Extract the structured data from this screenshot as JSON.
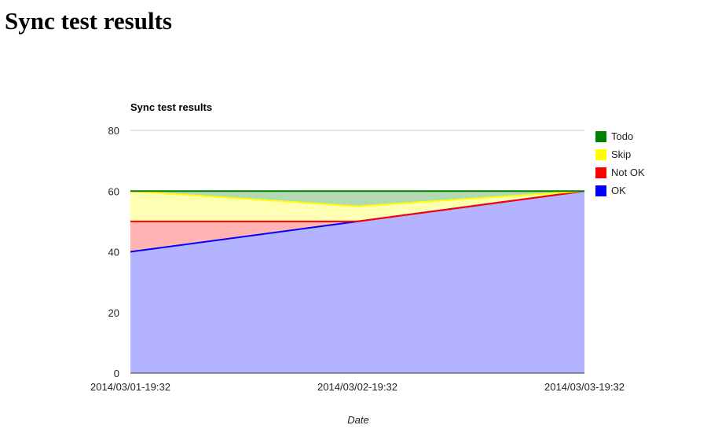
{
  "page": {
    "title": "Sync test results"
  },
  "chart_data": {
    "type": "area",
    "stacked": true,
    "title": "Sync test results",
    "xlabel": "Date",
    "ylabel": "",
    "x": [
      "2014/03/01-19:32",
      "2014/03/02-19:32",
      "2014/03/03-19:32"
    ],
    "ylim": [
      0,
      80
    ],
    "yticks": [
      0,
      20,
      40,
      60,
      80
    ],
    "grid": true,
    "legend_position": "right",
    "series": [
      {
        "name": "OK",
        "color": "#0000ff",
        "fill": "#b3b3ff",
        "values": [
          40,
          50,
          60
        ]
      },
      {
        "name": "Not OK",
        "color": "#ff0000",
        "fill": "#ffb3b3",
        "values": [
          10,
          0,
          0
        ]
      },
      {
        "name": "Skip",
        "color": "#ffff00",
        "fill": "#ffffb3",
        "values": [
          10,
          5,
          0
        ]
      },
      {
        "name": "Todo",
        "color": "#008000",
        "fill": "#b3d9b3",
        "values": [
          0,
          5,
          0
        ]
      }
    ],
    "legend_order": [
      "Todo",
      "Skip",
      "Not OK",
      "OK"
    ]
  }
}
